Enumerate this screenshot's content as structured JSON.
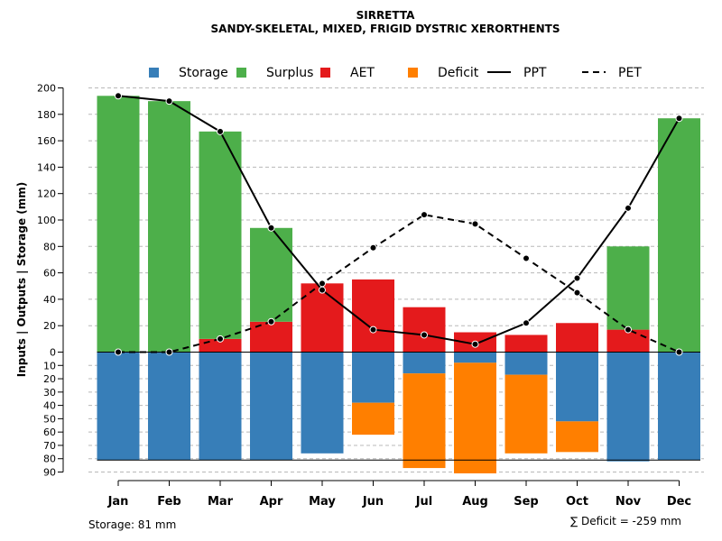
{
  "chart_data": {
    "type": "bar",
    "title": "SIRRETTA",
    "subtitle": "SANDY-SKELETAL, MIXED, FRIGID DYSTRIC XERORTHENTS",
    "ylabel": "Inputs | Outputs | Storage    (mm)",
    "categories": [
      "Jan",
      "Feb",
      "Mar",
      "Apr",
      "May",
      "Jun",
      "Jul",
      "Aug",
      "Sep",
      "Oct",
      "Nov",
      "Dec"
    ],
    "ylim_top": [
      0,
      200
    ],
    "ylim_bottom": [
      0,
      90
    ],
    "yticks_top": [
      "0",
      "20",
      "40",
      "60",
      "80",
      "100",
      "120",
      "140",
      "160",
      "180",
      "200"
    ],
    "yticks_bottom": [
      "10",
      "20",
      "30",
      "40",
      "50",
      "60",
      "70",
      "80",
      "90"
    ],
    "series": [
      {
        "name": "Storage",
        "color": "#377EB8",
        "values": [
          81,
          81,
          81,
          81,
          76,
          38,
          16,
          8,
          17,
          52,
          82,
          81
        ]
      },
      {
        "name": "Surplus",
        "color": "#4DAF4A",
        "values": [
          194,
          190,
          157,
          71,
          0,
          0,
          0,
          0,
          0,
          0,
          63,
          177
        ]
      },
      {
        "name": "AET",
        "color": "#E41A1C",
        "values": [
          0,
          0,
          10,
          23,
          52,
          55,
          34,
          15,
          13,
          22,
          17,
          0
        ]
      },
      {
        "name": "Deficit",
        "color": "#FF7F00",
        "values": [
          0,
          0,
          0,
          0,
          0,
          24,
          71,
          83,
          59,
          23,
          0,
          0
        ]
      },
      {
        "name": "PPT",
        "color": "#000000",
        "style": "solid",
        "values": [
          194,
          190,
          167,
          94,
          47,
          17,
          13,
          6,
          22,
          56,
          109,
          177
        ]
      },
      {
        "name": "PET",
        "color": "#000000",
        "style": "dashed",
        "values": [
          0,
          0,
          10,
          23,
          52,
          79,
          104,
          97,
          71,
          45,
          17,
          0
        ]
      }
    ],
    "legend": [
      "Storage",
      "Surplus",
      "AET",
      "Deficit",
      "PPT",
      "PET"
    ],
    "legend_position": "top",
    "grid": true,
    "storage_note": "Storage: 81 mm",
    "deficit_note": "∑ Deficit = -259 mm"
  }
}
